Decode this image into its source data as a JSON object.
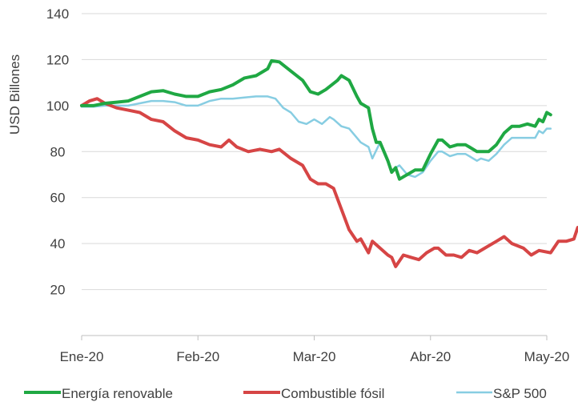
{
  "chart_data": {
    "type": "line",
    "title": "",
    "ylabel": "USD Billones",
    "xlabel": "",
    "ylim": [
      0,
      140
    ],
    "yticks": [
      20,
      40,
      60,
      80,
      100,
      120,
      140
    ],
    "xlim": [
      0,
      120
    ],
    "xticks": [
      {
        "x": 0,
        "label": "Ene-20"
      },
      {
        "x": 30,
        "label": "Feb-20"
      },
      {
        "x": 60,
        "label": "Mar-20"
      },
      {
        "x": 90,
        "label": "Abr-20"
      },
      {
        "x": 120,
        "label": "May-20"
      }
    ],
    "grid": "horizontal",
    "legend_position": "bottom",
    "series": [
      {
        "name": "Energía renovable",
        "color": "#1fa843",
        "points": [
          [
            0,
            100
          ],
          [
            3,
            100
          ],
          [
            6,
            101
          ],
          [
            9,
            101.5
          ],
          [
            12,
            102
          ],
          [
            15,
            104
          ],
          [
            18,
            106
          ],
          [
            21,
            106.5
          ],
          [
            24,
            105
          ],
          [
            27,
            104
          ],
          [
            30,
            104
          ],
          [
            33,
            106
          ],
          [
            36,
            107
          ],
          [
            39,
            109
          ],
          [
            42,
            112
          ],
          [
            45,
            113
          ],
          [
            48,
            116
          ],
          [
            49,
            119.5
          ],
          [
            51,
            119
          ],
          [
            54,
            115
          ],
          [
            57,
            111
          ],
          [
            59,
            106
          ],
          [
            61,
            105
          ],
          [
            63,
            107
          ],
          [
            66,
            111
          ],
          [
            67,
            113
          ],
          [
            69,
            111
          ],
          [
            71,
            104
          ],
          [
            72,
            101
          ],
          [
            74,
            99
          ],
          [
            75,
            90
          ],
          [
            76,
            84
          ],
          [
            77,
            84
          ],
          [
            79,
            76
          ],
          [
            80,
            71
          ],
          [
            81,
            73
          ],
          [
            82,
            68
          ],
          [
            84,
            70
          ],
          [
            86,
            72
          ],
          [
            88,
            72
          ],
          [
            90,
            79
          ],
          [
            92,
            85
          ],
          [
            93,
            85
          ],
          [
            95,
            82
          ],
          [
            97,
            83
          ],
          [
            99,
            83
          ],
          [
            100,
            82
          ],
          [
            102,
            80
          ],
          [
            103,
            80
          ],
          [
            105,
            80
          ],
          [
            107,
            83
          ],
          [
            109,
            88
          ],
          [
            111,
            91
          ],
          [
            113,
            91
          ],
          [
            115,
            92
          ],
          [
            117,
            91
          ],
          [
            118,
            94
          ],
          [
            119,
            93
          ],
          [
            120,
            97
          ],
          [
            121,
            96
          ]
        ]
      },
      {
        "name": "Combustible fósil",
        "color": "#d64545",
        "points": [
          [
            0,
            100
          ],
          [
            2,
            102
          ],
          [
            4,
            103
          ],
          [
            6,
            101
          ],
          [
            9,
            99
          ],
          [
            12,
            98
          ],
          [
            15,
            97
          ],
          [
            18,
            94
          ],
          [
            21,
            93
          ],
          [
            24,
            89
          ],
          [
            27,
            86
          ],
          [
            30,
            85
          ],
          [
            33,
            83
          ],
          [
            36,
            82
          ],
          [
            38,
            85
          ],
          [
            40,
            82
          ],
          [
            43,
            80
          ],
          [
            46,
            81
          ],
          [
            49,
            80
          ],
          [
            51,
            81
          ],
          [
            54,
            77
          ],
          [
            57,
            74
          ],
          [
            59,
            68
          ],
          [
            61,
            66
          ],
          [
            63,
            66
          ],
          [
            65,
            64
          ],
          [
            67,
            55
          ],
          [
            69,
            46
          ],
          [
            71,
            41
          ],
          [
            72,
            42
          ],
          [
            74,
            36
          ],
          [
            75,
            41
          ],
          [
            77,
            38
          ],
          [
            79,
            35
          ],
          [
            80,
            34
          ],
          [
            81,
            30
          ],
          [
            83,
            35
          ],
          [
            85,
            34
          ],
          [
            87,
            33
          ],
          [
            89,
            36
          ],
          [
            91,
            38
          ],
          [
            92,
            38
          ],
          [
            94,
            35
          ],
          [
            96,
            35
          ],
          [
            98,
            34
          ],
          [
            100,
            37
          ],
          [
            102,
            36
          ],
          [
            104,
            38
          ],
          [
            107,
            41
          ],
          [
            109,
            43
          ],
          [
            111,
            40
          ],
          [
            114,
            38
          ],
          [
            116,
            35
          ],
          [
            117,
            36
          ],
          [
            118,
            37
          ],
          [
            121,
            36
          ],
          [
            123,
            41
          ],
          [
            125,
            41
          ],
          [
            127,
            42
          ],
          [
            128,
            47
          ]
        ]
      },
      {
        "name": "S&P 500",
        "color": "#87cde2",
        "points": [
          [
            0,
            99.5
          ],
          [
            3,
            99.5
          ],
          [
            6,
            100
          ],
          [
            9,
            100
          ],
          [
            12,
            100
          ],
          [
            15,
            101
          ],
          [
            18,
            102
          ],
          [
            21,
            102
          ],
          [
            24,
            101.5
          ],
          [
            27,
            100
          ],
          [
            30,
            100
          ],
          [
            33,
            102
          ],
          [
            36,
            103
          ],
          [
            39,
            103
          ],
          [
            42,
            103.5
          ],
          [
            45,
            104
          ],
          [
            48,
            104
          ],
          [
            50,
            103
          ],
          [
            52,
            99
          ],
          [
            54,
            97
          ],
          [
            56,
            93
          ],
          [
            58,
            92
          ],
          [
            60,
            94
          ],
          [
            62,
            92
          ],
          [
            64,
            95
          ],
          [
            65,
            94
          ],
          [
            67,
            91
          ],
          [
            69,
            90
          ],
          [
            71,
            86
          ],
          [
            72,
            84
          ],
          [
            74,
            82
          ],
          [
            75,
            77
          ],
          [
            77,
            84
          ],
          [
            79,
            76
          ],
          [
            80,
            71
          ],
          [
            81,
            73
          ],
          [
            82,
            74
          ],
          [
            84,
            70
          ],
          [
            86,
            69
          ],
          [
            88,
            71
          ],
          [
            90,
            76
          ],
          [
            92,
            80
          ],
          [
            93,
            80
          ],
          [
            95,
            78
          ],
          [
            97,
            79
          ],
          [
            99,
            79
          ],
          [
            100,
            78
          ],
          [
            102,
            76
          ],
          [
            103,
            77
          ],
          [
            105,
            76
          ],
          [
            107,
            79
          ],
          [
            109,
            83
          ],
          [
            111,
            86
          ],
          [
            113,
            86
          ],
          [
            115,
            86
          ],
          [
            117,
            86
          ],
          [
            118,
            89
          ],
          [
            119,
            88
          ],
          [
            120,
            90
          ],
          [
            121,
            90
          ]
        ]
      }
    ]
  }
}
